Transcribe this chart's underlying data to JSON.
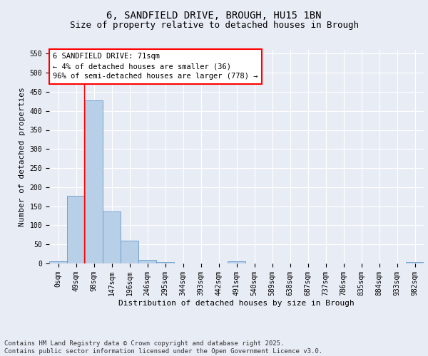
{
  "title_line1": "6, SANDFIELD DRIVE, BROUGH, HU15 1BN",
  "title_line2": "Size of property relative to detached houses in Brough",
  "xlabel": "Distribution of detached houses by size in Brough",
  "ylabel": "Number of detached properties",
  "categories": [
    "0sqm",
    "49sqm",
    "98sqm",
    "147sqm",
    "196sqm",
    "246sqm",
    "295sqm",
    "344sqm",
    "393sqm",
    "442sqm",
    "491sqm",
    "540sqm",
    "589sqm",
    "638sqm",
    "687sqm",
    "737sqm",
    "786sqm",
    "835sqm",
    "884sqm",
    "933sqm",
    "982sqm"
  ],
  "values": [
    5,
    177,
    428,
    136,
    59,
    9,
    4,
    0,
    0,
    0,
    5,
    0,
    0,
    0,
    0,
    0,
    0,
    0,
    0,
    0,
    4
  ],
  "bar_color": "#b8cfe8",
  "bar_edge_color": "#6699cc",
  "red_line_x": 1.44,
  "annotation_line1": "6 SANDFIELD DRIVE: 71sqm",
  "annotation_line2": "← 4% of detached houses are smaller (36)",
  "annotation_line3": "96% of semi-detached houses are larger (778) →",
  "ylim": [
    0,
    560
  ],
  "yticks": [
    0,
    50,
    100,
    150,
    200,
    250,
    300,
    350,
    400,
    450,
    500,
    550
  ],
  "background_color": "#e8ecf5",
  "plot_background": "#e8ecf5",
  "grid_color": "#ffffff",
  "footer_text": "Contains HM Land Registry data © Crown copyright and database right 2025.\nContains public sector information licensed under the Open Government Licence v3.0.",
  "title_fontsize": 10,
  "subtitle_fontsize": 9,
  "axis_label_fontsize": 8,
  "tick_fontsize": 7,
  "annotation_fontsize": 7.5,
  "footer_fontsize": 6.5
}
